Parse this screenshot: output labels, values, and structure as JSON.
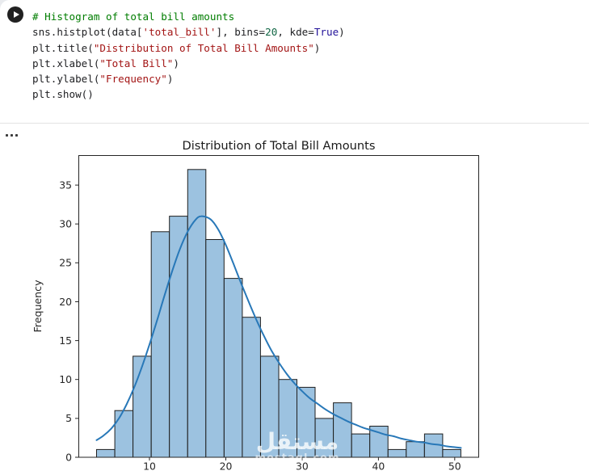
{
  "window": {
    "background": "#ffffff"
  },
  "cell": {
    "run_button_icon": "play-icon",
    "code_lines": [
      [
        {
          "t": "# Histogram of total bill amounts",
          "c": "comment"
        }
      ],
      [
        {
          "t": "sns.histplot(data[",
          "c": "plain"
        },
        {
          "t": "'total_bill'",
          "c": "string"
        },
        {
          "t": "], bins=",
          "c": "plain"
        },
        {
          "t": "20",
          "c": "number"
        },
        {
          "t": ", kde=",
          "c": "plain"
        },
        {
          "t": "True",
          "c": "atom"
        },
        {
          "t": ")",
          "c": "plain"
        }
      ],
      [
        {
          "t": "plt.title(",
          "c": "plain"
        },
        {
          "t": "\"Distribution of Total Bill Amounts\"",
          "c": "string"
        },
        {
          "t": ")",
          "c": "plain"
        }
      ],
      [
        {
          "t": "plt.xlabel(",
          "c": "plain"
        },
        {
          "t": "\"Total Bill\"",
          "c": "string"
        },
        {
          "t": ")",
          "c": "plain"
        }
      ],
      [
        {
          "t": "plt.ylabel(",
          "c": "plain"
        },
        {
          "t": "\"Frequency\"",
          "c": "string"
        },
        {
          "t": ")",
          "c": "plain"
        }
      ],
      [
        {
          "t": "plt.show()",
          "c": "plain"
        }
      ]
    ]
  },
  "output": {
    "options_icon": "ellipsis-icon"
  },
  "chart_data": {
    "type": "histogram",
    "title": "Distribution of Total Bill Amounts",
    "ylabel": "Frequency",
    "bins": 20,
    "bin_start": 3.07,
    "bin_width": 2.387,
    "counts": [
      1,
      6,
      13,
      29,
      31,
      37,
      28,
      23,
      18,
      13,
      10,
      9,
      5,
      7,
      3,
      4,
      1,
      2,
      3,
      1
    ],
    "kde_points": [
      [
        3.07,
        2.2
      ],
      [
        4,
        2.8
      ],
      [
        5,
        3.7
      ],
      [
        6,
        5.0
      ],
      [
        7,
        6.8
      ],
      [
        8,
        9.0
      ],
      [
        9,
        11.6
      ],
      [
        10,
        14.5
      ],
      [
        11,
        17.6
      ],
      [
        12,
        20.9
      ],
      [
        13,
        24.0
      ],
      [
        14,
        26.8
      ],
      [
        15,
        29.0
      ],
      [
        16,
        30.5
      ],
      [
        16.8,
        31.0
      ],
      [
        18,
        30.6
      ],
      [
        19,
        29.3
      ],
      [
        20,
        27.3
      ],
      [
        21,
        24.9
      ],
      [
        22,
        22.4
      ],
      [
        23,
        20.0
      ],
      [
        24,
        17.7
      ],
      [
        25,
        15.6
      ],
      [
        26,
        13.7
      ],
      [
        27,
        12.1
      ],
      [
        28,
        10.7
      ],
      [
        29,
        9.5
      ],
      [
        30,
        8.5
      ],
      [
        31,
        7.6
      ],
      [
        32,
        6.9
      ],
      [
        33,
        6.2
      ],
      [
        34,
        5.6
      ],
      [
        35,
        5.1
      ],
      [
        36,
        4.6
      ],
      [
        37,
        4.2
      ],
      [
        38,
        3.8
      ],
      [
        39,
        3.5
      ],
      [
        40,
        3.2
      ],
      [
        41,
        2.9
      ],
      [
        42,
        2.7
      ],
      [
        43,
        2.4
      ],
      [
        44,
        2.2
      ],
      [
        45,
        2.0
      ],
      [
        46,
        1.9
      ],
      [
        47,
        1.7
      ],
      [
        48,
        1.6
      ],
      [
        49,
        1.4
      ],
      [
        50,
        1.3
      ],
      [
        50.81,
        1.2
      ]
    ],
    "xticks": [
      10,
      20,
      30,
      40,
      50
    ],
    "yticks": [
      0,
      5,
      10,
      15,
      20,
      25,
      30,
      35
    ],
    "xlim": [
      0.683,
      53.197
    ],
    "ylim": [
      0,
      38.85
    ],
    "legend": "off",
    "grid": "off",
    "colors": {
      "bar_fill": "#9cc2e0",
      "bar_edge": "#1f1f1f",
      "kde_line": "#2878b8",
      "axis": "#262626"
    }
  },
  "watermark": {
    "arabic": "مستقل",
    "domain": "mostaql.com"
  }
}
